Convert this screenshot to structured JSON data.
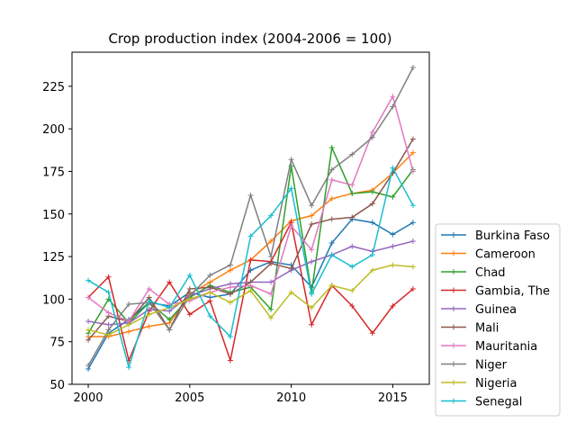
{
  "chart_data": {
    "type": "line",
    "title": "Crop production index (2004-2006 = 100)",
    "xlabel": "",
    "ylabel": "",
    "xlim": [
      1999.2,
      2016.8
    ],
    "ylim": [
      50,
      245
    ],
    "xticks": [
      2000,
      2005,
      2010,
      2015
    ],
    "yticks": [
      50,
      75,
      100,
      125,
      150,
      175,
      200,
      225
    ],
    "grid": false,
    "legend_position": "outside-right",
    "x": [
      2000,
      2001,
      2002,
      2003,
      2004,
      2005,
      2006,
      2007,
      2008,
      2009,
      2010,
      2011,
      2012,
      2013,
      2014,
      2015,
      2016
    ],
    "series": [
      {
        "name": "Burkina Faso",
        "color": "#1f77b4",
        "values": [
          59,
          80,
          88,
          98,
          96,
          104,
          101,
          103,
          117,
          122,
          120,
          107,
          133,
          147,
          145,
          138,
          145
        ]
      },
      {
        "name": "Cameroon",
        "color": "#ff7f0e",
        "values": [
          78,
          78,
          81,
          84,
          86,
          103,
          110,
          117,
          123,
          134,
          146,
          149,
          159,
          162,
          164,
          174,
          186
        ]
      },
      {
        "name": "Chad",
        "color": "#2ca02c",
        "values": [
          80,
          100,
          86,
          98,
          88,
          101,
          108,
          104,
          107,
          94,
          178,
          104,
          189,
          162,
          163,
          160,
          176
        ]
      },
      {
        "name": "Gambia, The",
        "color": "#d62728",
        "values": [
          101,
          113,
          64,
          93,
          110,
          91,
          99,
          64,
          123,
          122,
          145,
          85,
          108,
          96,
          80,
          96,
          106
        ]
      },
      {
        "name": "Guinea",
        "color": "#9467bd",
        "values": [
          87,
          85,
          86,
          94,
          93,
          102,
          106,
          109,
          110,
          110,
          117,
          122,
          126,
          131,
          128,
          131,
          134
        ]
      },
      {
        "name": "Mali",
        "color": "#8c564b",
        "values": [
          76,
          90,
          87,
          101,
          82,
          106,
          107,
          103,
          110,
          121,
          118,
          144,
          147,
          148,
          156,
          174,
          194
        ]
      },
      {
        "name": "Mauritania",
        "color": "#e377c2",
        "values": [
          101,
          92,
          87,
          106,
          97,
          99,
          104,
          107,
          108,
          103,
          143,
          129,
          170,
          167,
          198,
          219,
          175
        ]
      },
      {
        "name": "Niger",
        "color": "#7f7f7f",
        "values": [
          61,
          82,
          97,
          98,
          82,
          102,
          114,
          120,
          161,
          125,
          182,
          155,
          176,
          185,
          195,
          213,
          236
        ]
      },
      {
        "name": "Nigeria",
        "color": "#bcbd22",
        "values": [
          82,
          79,
          85,
          91,
          95,
          100,
          104,
          98,
          105,
          89,
          104,
          95,
          108,
          105,
          117,
          120,
          119
        ]
      },
      {
        "name": "Senegal",
        "color": "#17becf",
        "values": [
          111,
          104,
          60,
          99,
          95,
          114,
          90,
          78,
          137,
          149,
          165,
          103,
          126,
          119,
          126,
          177,
          155
        ]
      }
    ]
  }
}
